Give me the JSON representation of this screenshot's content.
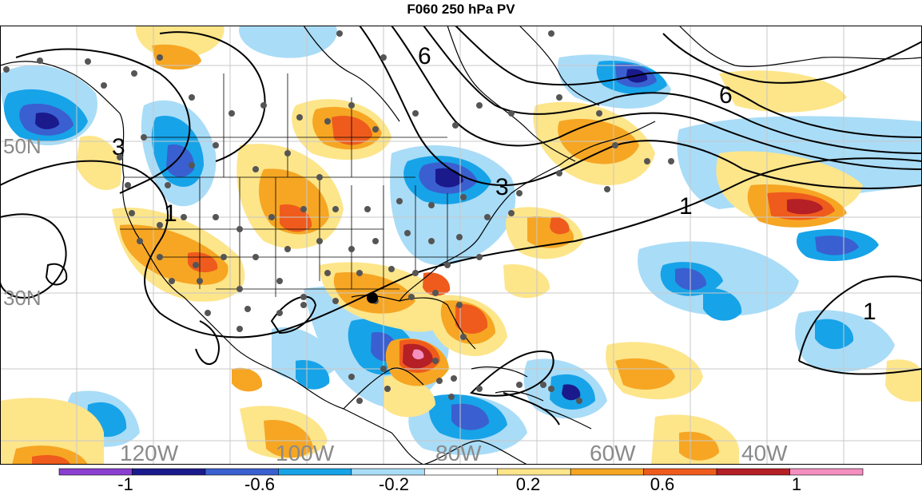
{
  "title": "F060 250 hPa PV",
  "map": {
    "longitude_labels": [
      "120W",
      "100W",
      "80W",
      "60W",
      "40W"
    ],
    "latitude_labels": [
      "50N",
      "30N"
    ],
    "contour_labels": [
      "3",
      "3",
      "6",
      "6",
      "1",
      "1",
      "1"
    ],
    "colors": {
      "deep_negative": "#1a1a8c",
      "strong_negative": "#3a5fd0",
      "moderate_negative": "#17a3e8",
      "weak_negative": "#a9dcf7",
      "weak_positive": "#fde58a",
      "moderate_positive": "#f6a623",
      "strong_positive": "#ef5b1c",
      "deep_positive": "#b51f26",
      "grid": "#c8c8c8",
      "station_dot": "#555555"
    }
  },
  "colorbar": {
    "tick_labels": [
      "-1",
      "-0.6",
      "-0.2",
      "0.2",
      "0.6",
      "1"
    ],
    "colors": [
      "#8a3fd1",
      "#1a1a8c",
      "#3a5fd0",
      "#17a3e8",
      "#a9dcf7",
      "#ffffff",
      "#fde58a",
      "#f6a623",
      "#ef5b1c",
      "#b51f26",
      "#f48fc0"
    ]
  }
}
